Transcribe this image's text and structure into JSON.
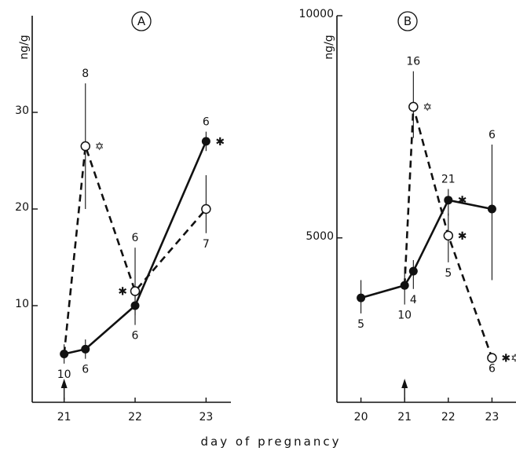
{
  "figure": {
    "xlabel": "day of pregnancy"
  },
  "chart_data": [
    {
      "type": "line",
      "panel_label": "A",
      "ylabel": "ng/g",
      "xlabel": "day of pregnancy",
      "xlim": [
        20.55,
        23.35
      ],
      "ylim": [
        0,
        40
      ],
      "xticks": [
        21,
        22,
        23
      ],
      "yticks": [
        10,
        20,
        30
      ],
      "arrow_at_x": 21,
      "grid": false,
      "series": [
        {
          "style": "solid-filled",
          "points": [
            {
              "x": 21.0,
              "y": 5,
              "err_lo": 4,
              "err_hi": 6,
              "n": "10",
              "n_pos": "below",
              "mark": ""
            },
            {
              "x": 21.3,
              "y": 5.5,
              "err_lo": 4.5,
              "err_hi": 6.5,
              "n": "6",
              "n_pos": "below",
              "mark": ""
            },
            {
              "x": 22.0,
              "y": 10,
              "err_lo": 8,
              "err_hi": 12,
              "n": "6",
              "n_pos": "below",
              "mark": ""
            },
            {
              "x": 23.0,
              "y": 27,
              "err_lo": 26,
              "err_hi": 28,
              "n": "6",
              "n_pos": "above",
              "mark": "✱"
            }
          ]
        },
        {
          "style": "dashed-open",
          "points": [
            {
              "x": 21.0,
              "y": 5,
              "err_lo": 5,
              "err_hi": 5,
              "n": "",
              "n_pos": "below",
              "mark": ""
            },
            {
              "x": 21.3,
              "y": 26.5,
              "err_lo": 20,
              "err_hi": 33,
              "n": "8",
              "n_pos": "above",
              "mark": "✡"
            },
            {
              "x": 22.0,
              "y": 11.5,
              "err_lo": 9,
              "err_hi": 16,
              "n": "6",
              "n_pos": "above",
              "mark": "✱",
              "mark_pos": "left"
            },
            {
              "x": 23.0,
              "y": 20,
              "err_lo": 17.5,
              "err_hi": 23.5,
              "n": "7",
              "n_pos": "below",
              "mark": ""
            }
          ]
        }
      ]
    },
    {
      "type": "line",
      "panel_label": "B",
      "ylabel": "ng/g",
      "xlabel": "day of pregnancy",
      "xlim": [
        19.45,
        23.55
      ],
      "ylim": [
        1300,
        10000
      ],
      "xticks": [
        20,
        21,
        22,
        23
      ],
      "yticks": [
        5000,
        10000
      ],
      "ytick_labels": [
        "5000",
        "10000"
      ],
      "arrow_at_x": 21,
      "grid": false,
      "series": [
        {
          "style": "solid-filled",
          "points": [
            {
              "x": 20.0,
              "y": 3650,
              "err_lo": 3300,
              "err_hi": 4050,
              "n": "5",
              "n_pos": "below",
              "mark": ""
            },
            {
              "x": 21.0,
              "y": 3930,
              "err_lo": 3500,
              "err_hi": 4350,
              "n": "10",
              "n_pos": "below",
              "mark": ""
            },
            {
              "x": 21.2,
              "y": 4250,
              "err_lo": 3850,
              "err_hi": 4500,
              "n": "4",
              "n_pos": "below",
              "mark": ""
            },
            {
              "x": 22.0,
              "y": 5850,
              "err_lo": 5500,
              "err_hi": 6100,
              "n": "21",
              "n_pos": "above",
              "mark": "✱"
            },
            {
              "x": 23.0,
              "y": 5650,
              "err_lo": 4050,
              "err_hi": 7100,
              "n": "6",
              "n_pos": "above",
              "mark": ""
            }
          ]
        },
        {
          "style": "dashed-open",
          "points": [
            {
              "x": 21.0,
              "y": 3930,
              "err_lo": 3930,
              "err_hi": 3930,
              "n": "",
              "n_pos": "below",
              "mark": ""
            },
            {
              "x": 21.2,
              "y": 7950,
              "err_lo": 7250,
              "err_hi": 8750,
              "n": "16",
              "n_pos": "above",
              "mark": "✡"
            },
            {
              "x": 22.0,
              "y": 5050,
              "err_lo": 4450,
              "err_hi": 5550,
              "n": "5",
              "n_pos": "below",
              "mark": "✱"
            },
            {
              "x": 23.0,
              "y": 2300,
              "err_lo": 2300,
              "err_hi": 2300,
              "n": "6",
              "n_pos": "below",
              "mark": "✱✡"
            }
          ]
        }
      ]
    }
  ]
}
